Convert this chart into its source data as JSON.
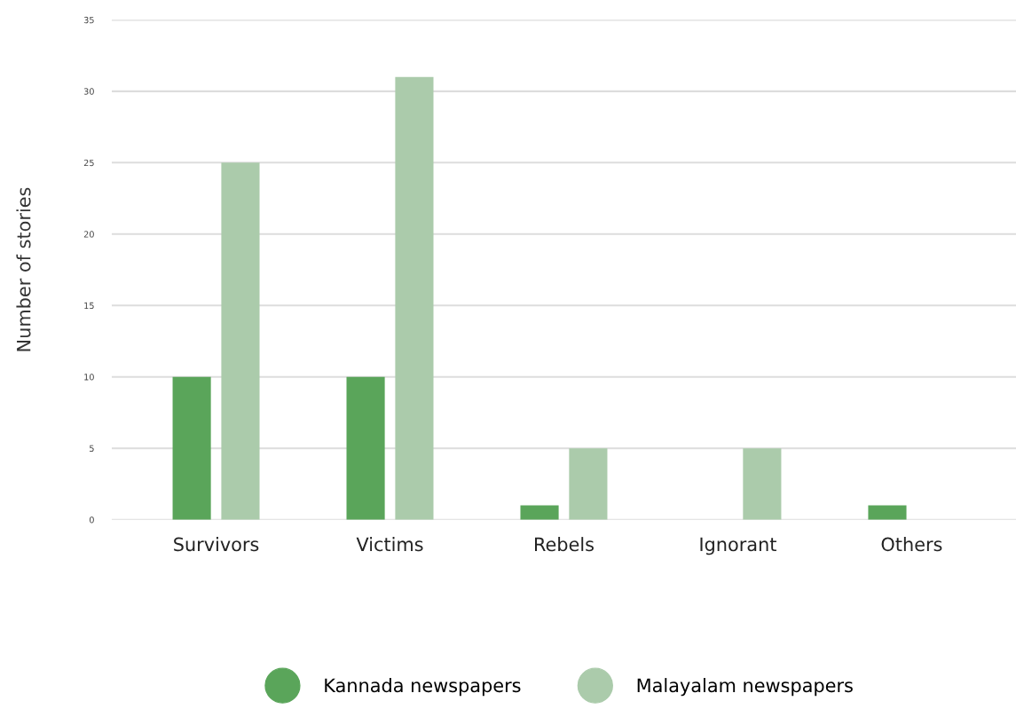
{
  "chart_data": {
    "type": "bar",
    "ylabel": "Number of stories",
    "categories": [
      "Survivors",
      "Victims",
      "Rebels",
      "Ignorant",
      "Others"
    ],
    "series": [
      {
        "name": "Kannada newspapers",
        "color": "#5aa55a",
        "values": [
          10,
          10,
          1,
          0,
          1
        ]
      },
      {
        "name": "Malayalam newspapers",
        "color": "#abcbab",
        "values": [
          25,
          31,
          5,
          5,
          0
        ]
      }
    ],
    "ylim": [
      0,
      35
    ],
    "yticks": [
      0,
      5,
      10,
      15,
      20,
      25,
      30,
      35
    ],
    "grid": "y",
    "legend": "bottom"
  }
}
